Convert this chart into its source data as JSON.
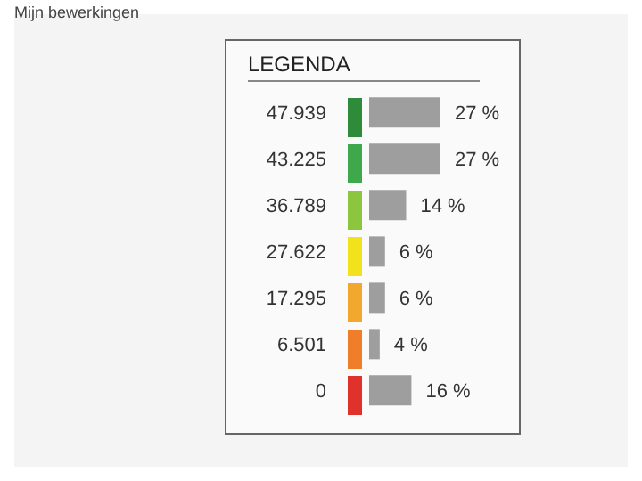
{
  "chart_data": {
    "type": "bar",
    "orientation": "horizontal",
    "title": "LEGENDA",
    "annotations": [
      "Mijn bewerkingen"
    ],
    "categories": [
      "47.939",
      "43.225",
      "36.789",
      "27.622",
      "17.295",
      "6.501",
      "0"
    ],
    "values": [
      27,
      27,
      14,
      6,
      6,
      4,
      16
    ],
    "value_labels": [
      "27 %",
      "27 %",
      "14 %",
      "6 %",
      "6 %",
      "4 %",
      "16 %"
    ],
    "color": "#9e9e9e"
  }
}
